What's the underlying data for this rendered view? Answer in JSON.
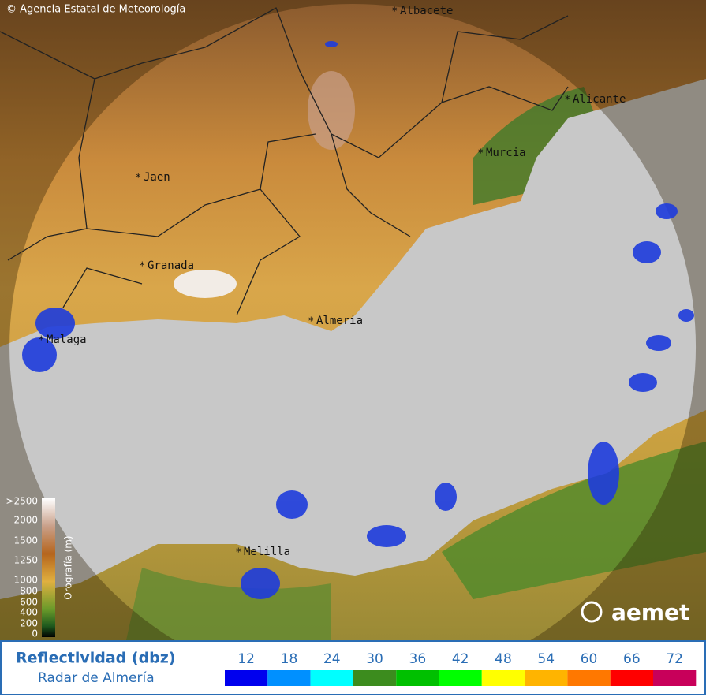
{
  "header": {
    "credit": "© Agencia Estatal de Meteorología"
  },
  "cities": [
    "Albacete",
    "Alicante",
    "Murcia",
    "Jaen",
    "Granada",
    "Almeria",
    "Malaga",
    "Melilla"
  ],
  "orography": {
    "label": "Orografía (m)",
    "ticks": [
      ">2500",
      "2000",
      "1500",
      "1250",
      "1000",
      "800",
      "600",
      "400",
      "200",
      "0"
    ]
  },
  "logo": "aemet",
  "legend": {
    "title": "Reflectividad (dbz)",
    "subtitle": "Radar de Almería",
    "values": [
      12,
      18,
      24,
      30,
      36,
      42,
      48,
      54,
      60,
      66,
      72
    ],
    "colors": [
      "#0000ee",
      "#0090ff",
      "#00ffff",
      "#3c8c1e",
      "#00c000",
      "#00ff00",
      "#ffff00",
      "#ffb400",
      "#ff7800",
      "#ff0000",
      "#c8005a"
    ]
  }
}
